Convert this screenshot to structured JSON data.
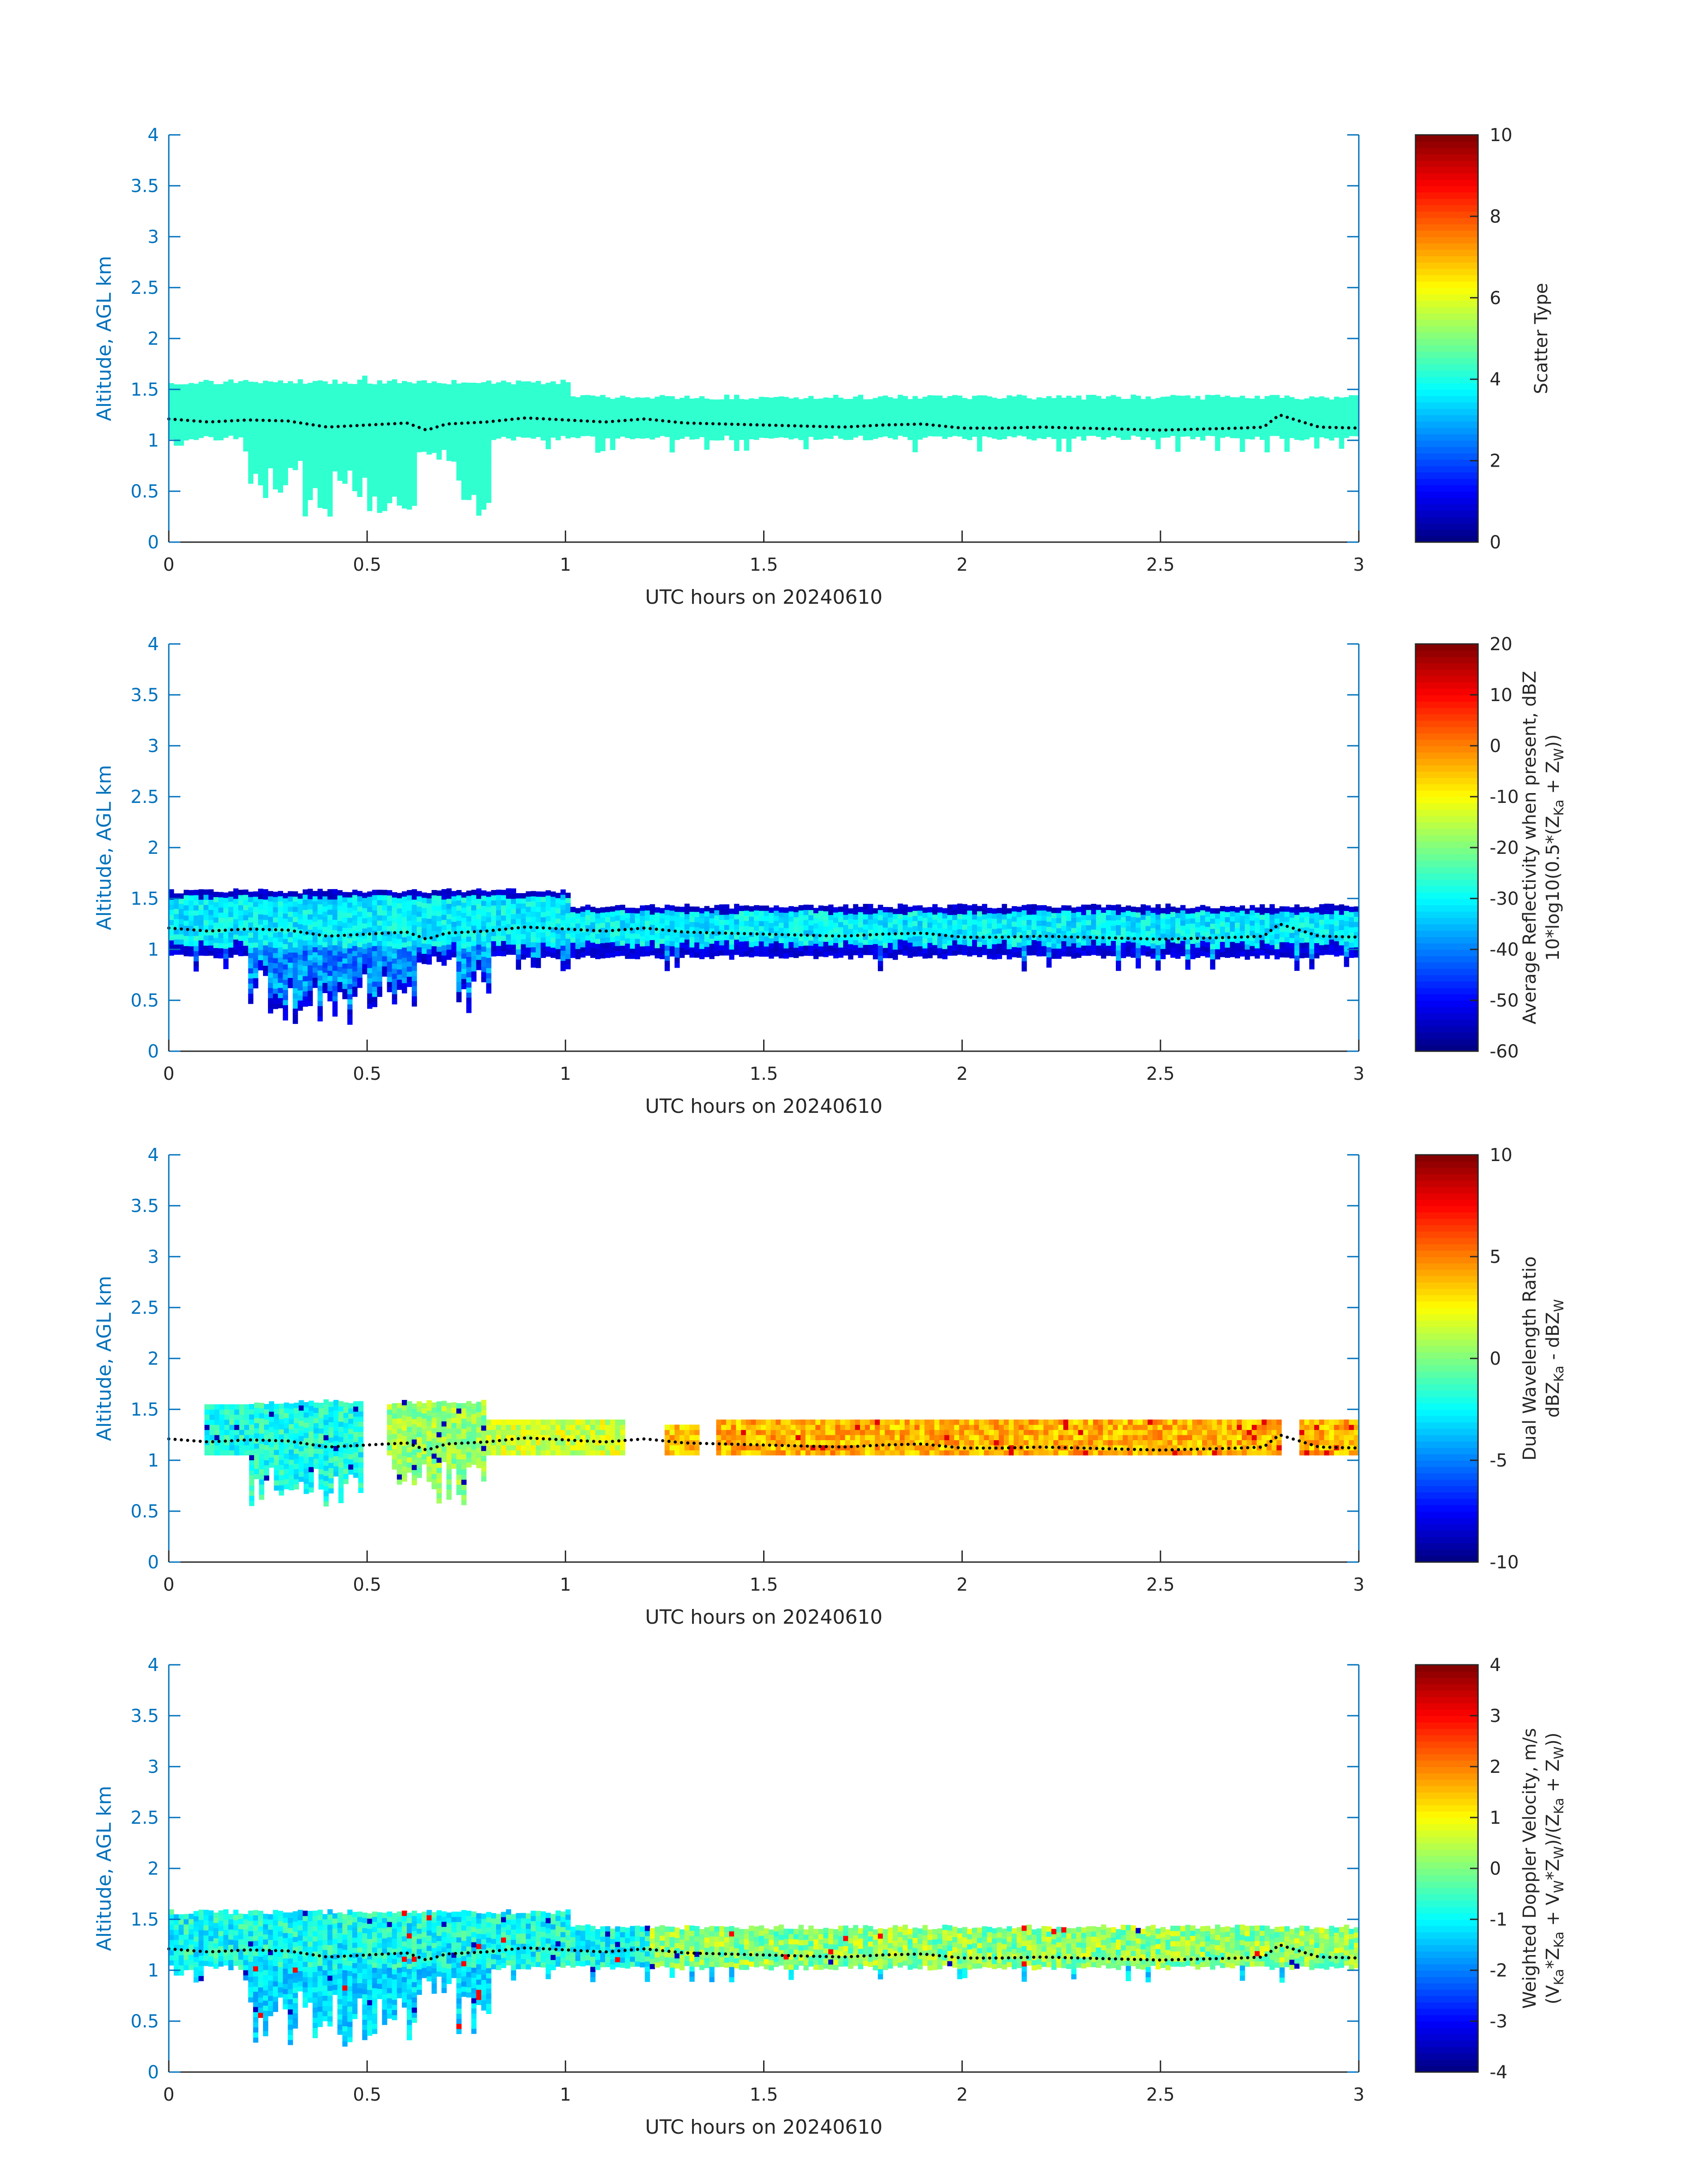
{
  "colors": {
    "axis_blue": "#0072BD",
    "axis_dark": "#262626",
    "scatter_fill": "#30FFD0",
    "ml_dots": "#000000"
  },
  "colormap": "jet",
  "chart_data": [
    {
      "type": "heatmap",
      "xlabel": "UTC hours on 20240610",
      "ylabel": "Altitude, AGL km",
      "xlim": [
        0,
        3
      ],
      "ylim": [
        0,
        4
      ],
      "xticks": [
        "0",
        "0.5",
        "1",
        "1.5",
        "2",
        "2.5",
        "3"
      ],
      "yticks": [
        "0",
        "0.5",
        "1",
        "1.5",
        "2",
        "2.5",
        "3",
        "3.5",
        "4"
      ],
      "colorbar": {
        "label_lines": [
          "Scatter Type"
        ],
        "range": [
          0,
          10
        ],
        "ticks": [
          "0",
          "2",
          "4",
          "6",
          "8",
          "10"
        ]
      },
      "cloud": {
        "x_range": [
          0,
          3
        ],
        "top_km": 1.55,
        "base_km": 1.0,
        "lowest_base_km": 0.25,
        "typical_value": 3.6
      },
      "overlay_line": {
        "style": "dotted",
        "color": "#000000",
        "x": [
          0,
          0.1,
          0.2,
          0.3,
          0.4,
          0.5,
          0.6,
          0.65,
          0.7,
          0.8,
          0.9,
          1.0,
          1.1,
          1.2,
          1.3,
          1.4,
          1.5,
          1.6,
          1.7,
          1.8,
          1.9,
          2.0,
          2.1,
          2.2,
          2.3,
          2.4,
          2.5,
          2.6,
          2.7,
          2.76,
          2.8,
          2.9,
          3.0
        ],
        "y": [
          1.21,
          1.18,
          1.2,
          1.19,
          1.13,
          1.15,
          1.17,
          1.1,
          1.16,
          1.18,
          1.22,
          1.2,
          1.18,
          1.21,
          1.17,
          1.16,
          1.15,
          1.14,
          1.13,
          1.15,
          1.16,
          1.12,
          1.12,
          1.13,
          1.12,
          1.11,
          1.1,
          1.11,
          1.12,
          1.13,
          1.25,
          1.13,
          1.12
        ]
      }
    },
    {
      "type": "heatmap",
      "xlabel": "UTC hours on 20240610",
      "ylabel": "Altitude, AGL km",
      "xlim": [
        0,
        3
      ],
      "ylim": [
        0,
        4
      ],
      "xticks": [
        "0",
        "0.5",
        "1",
        "1.5",
        "2",
        "2.5",
        "3"
      ],
      "yticks": [
        "0",
        "0.5",
        "1",
        "1.5",
        "2",
        "2.5",
        "3",
        "3.5",
        "4"
      ],
      "colorbar": {
        "label_lines": [
          "Average Reflectivity when present, dBZ",
          "10*log10(0.5*(Z_Ka + Z_W))"
        ],
        "range": [
          -60,
          20
        ],
        "ticks": [
          "-60",
          "-50",
          "-40",
          "-30",
          "-20",
          "-10",
          "0",
          "10",
          "20"
        ]
      },
      "cloud": {
        "x_range": [
          0,
          3
        ],
        "top_km": 1.55,
        "base_km": 0.9,
        "lowest_base_km": 0.25,
        "core_value_dBZ": -32,
        "edge_value_dBZ": -55
      },
      "overlay_line": {
        "style": "dotted",
        "color": "#000000",
        "x": [
          0,
          0.1,
          0.2,
          0.3,
          0.4,
          0.5,
          0.6,
          0.65,
          0.7,
          0.8,
          0.9,
          1.0,
          1.1,
          1.2,
          1.3,
          1.4,
          1.5,
          1.6,
          1.7,
          1.8,
          1.9,
          2.0,
          2.1,
          2.2,
          2.3,
          2.4,
          2.5,
          2.6,
          2.7,
          2.76,
          2.8,
          2.9,
          3.0
        ],
        "y": [
          1.21,
          1.18,
          1.2,
          1.19,
          1.13,
          1.15,
          1.17,
          1.1,
          1.16,
          1.18,
          1.22,
          1.2,
          1.18,
          1.21,
          1.17,
          1.16,
          1.15,
          1.14,
          1.13,
          1.15,
          1.16,
          1.12,
          1.12,
          1.13,
          1.12,
          1.11,
          1.1,
          1.11,
          1.12,
          1.13,
          1.25,
          1.13,
          1.12
        ]
      }
    },
    {
      "type": "heatmap",
      "xlabel": "UTC hours on 20240610",
      "ylabel": "Altitude, AGL km",
      "xlim": [
        0,
        3
      ],
      "ylim": [
        0,
        4
      ],
      "xticks": [
        "0",
        "0.5",
        "1",
        "1.5",
        "2",
        "2.5",
        "3"
      ],
      "yticks": [
        "0",
        "0.5",
        "1",
        "1.5",
        "2",
        "2.5",
        "3",
        "3.5",
        "4"
      ],
      "colorbar": {
        "label_lines": [
          "Dual Wavelength Ratio",
          "dBZ_Ka - dBZ_W"
        ],
        "range": [
          -10,
          10
        ],
        "ticks": [
          "-10",
          "-5",
          "0",
          "5",
          "10"
        ]
      },
      "cloud_segments": [
        {
          "x_range": [
            0.09,
            0.49
          ],
          "top_km": 1.55,
          "value_dB": -2
        },
        {
          "x_range": [
            0.55,
            0.8
          ],
          "top_km": 1.55,
          "value_dB": 0.5
        },
        {
          "x_range": [
            0.8,
            1.15
          ],
          "top_km": 1.4,
          "value_dB": 1.5
        },
        {
          "x_range": [
            1.25,
            1.33
          ],
          "top_km": 1.35,
          "value_dB": 3.5
        },
        {
          "x_range": [
            1.38,
            2.8
          ],
          "top_km": 1.4,
          "value_dB": 4
        },
        {
          "x_range": [
            2.85,
            3.0
          ],
          "top_km": 1.4,
          "value_dB": 4
        }
      ],
      "overlay_line": {
        "style": "dotted",
        "color": "#000000",
        "x": [
          0,
          0.1,
          0.2,
          0.3,
          0.4,
          0.5,
          0.6,
          0.65,
          0.7,
          0.8,
          0.9,
          1.0,
          1.1,
          1.2,
          1.3,
          1.4,
          1.5,
          1.6,
          1.7,
          1.8,
          1.9,
          2.0,
          2.1,
          2.2,
          2.3,
          2.4,
          2.5,
          2.6,
          2.7,
          2.76,
          2.8,
          2.9,
          3.0
        ],
        "y": [
          1.21,
          1.18,
          1.2,
          1.19,
          1.13,
          1.15,
          1.17,
          1.1,
          1.16,
          1.18,
          1.22,
          1.2,
          1.18,
          1.21,
          1.17,
          1.16,
          1.15,
          1.14,
          1.13,
          1.15,
          1.16,
          1.12,
          1.12,
          1.13,
          1.12,
          1.11,
          1.1,
          1.11,
          1.12,
          1.13,
          1.25,
          1.13,
          1.12
        ]
      }
    },
    {
      "type": "heatmap",
      "xlabel": "UTC hours on 20240610",
      "ylabel": "Altitude, AGL km",
      "xlim": [
        0,
        3
      ],
      "ylim": [
        0,
        4
      ],
      "xticks": [
        "0",
        "0.5",
        "1",
        "1.5",
        "2",
        "2.5",
        "3"
      ],
      "yticks": [
        "0",
        "0.5",
        "1",
        "1.5",
        "2",
        "2.5",
        "3",
        "3.5",
        "4"
      ],
      "colorbar": {
        "label_lines": [
          "Weighted Doppler Velocity, m/s",
          "(V_Ka*Z_Ka + V_W*Z_W)/(Z_Ka + Z_W))"
        ],
        "range": [
          -4,
          4
        ],
        "ticks": [
          "-4",
          "-3",
          "-2",
          "-1",
          "0",
          "1",
          "2",
          "3",
          "4"
        ]
      },
      "cloud": {
        "x_range": [
          0,
          3
        ],
        "top_km": 1.55,
        "base_km": 1.0,
        "lowest_base_km": 0.25,
        "typical_value_m_s": -0.8
      },
      "overlay_line": {
        "style": "dotted",
        "color": "#000000",
        "x": [
          0,
          0.1,
          0.2,
          0.3,
          0.4,
          0.5,
          0.6,
          0.65,
          0.7,
          0.8,
          0.9,
          1.0,
          1.1,
          1.2,
          1.3,
          1.4,
          1.5,
          1.6,
          1.7,
          1.8,
          1.9,
          2.0,
          2.1,
          2.2,
          2.3,
          2.4,
          2.5,
          2.6,
          2.7,
          2.76,
          2.8,
          2.9,
          3.0
        ],
        "y": [
          1.21,
          1.18,
          1.2,
          1.19,
          1.13,
          1.15,
          1.17,
          1.1,
          1.16,
          1.18,
          1.22,
          1.2,
          1.18,
          1.21,
          1.17,
          1.16,
          1.15,
          1.14,
          1.13,
          1.15,
          1.16,
          1.12,
          1.12,
          1.13,
          1.12,
          1.11,
          1.1,
          1.11,
          1.12,
          1.13,
          1.25,
          1.13,
          1.12
        ]
      }
    }
  ]
}
